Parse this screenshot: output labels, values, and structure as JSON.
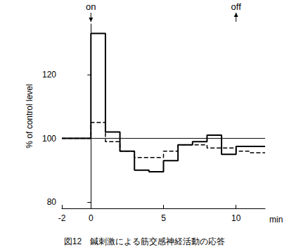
{
  "chart_data": {
    "type": "step",
    "title": "図12　鍼刺激による筋交感神経活動の応答",
    "y_label": "% of control level",
    "x_label": "min",
    "bins": [
      -2,
      0,
      1,
      2,
      3,
      4,
      5,
      6,
      7,
      8,
      9,
      10,
      11,
      12
    ],
    "series": [
      {
        "color": "#000000",
        "line_style": "solid",
        "values": [
          100,
          133,
          102,
          96,
          90,
          89.5,
          93,
          98,
          99,
          101,
          95,
          97.5,
          97.5
        ]
      },
      {
        "color": "#000000",
        "line_style": "dashed",
        "values": [
          100,
          105,
          99,
          96,
          94,
          94,
          96,
          98,
          98,
          97,
          97,
          96,
          95.5
        ]
      }
    ],
    "reference_line": 100,
    "annotations": [
      {
        "text": "on",
        "x": 0,
        "arrow": "down"
      },
      {
        "text": "off",
        "x": 10,
        "arrow": "up"
      }
    ],
    "xlim": [
      -2,
      12
    ],
    "xticks": [
      -2,
      0,
      5,
      10
    ],
    "ylim": [
      78,
      136
    ],
    "yticks": [
      80,
      100,
      120
    ],
    "grid": false
  }
}
